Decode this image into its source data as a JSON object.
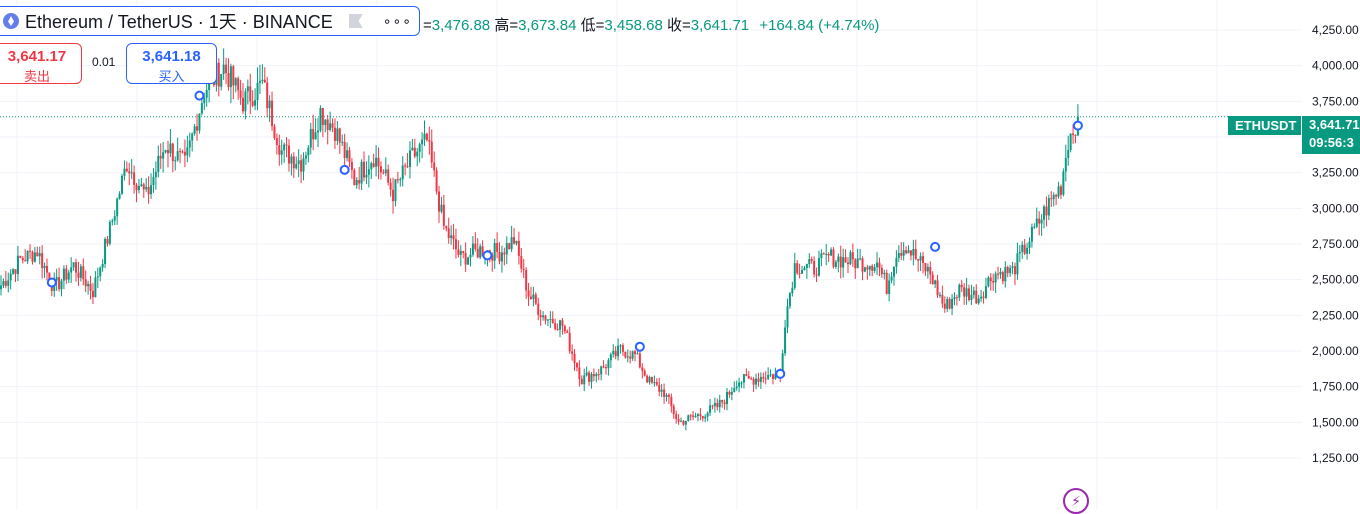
{
  "header": {
    "symbol_title": "Ethereum / TetherUS · 1天 · BINANCE",
    "more_label": "∘∘∘"
  },
  "ohlc": {
    "open_label": "=",
    "open": "3,476.88",
    "high_label": "高=",
    "high": "3,673.84",
    "low_label": "低=",
    "low": "3,458.68",
    "close_label": "收=",
    "close": "3,641.71",
    "change": "+164.84 (+4.74%)"
  },
  "trade": {
    "sell_price": "3,641.17",
    "sell_label": "卖出",
    "spread": "0.01",
    "buy_price": "3,641.18",
    "buy_label": "买入"
  },
  "price_axis": {
    "ticker": "ETHUSDT",
    "last_price": "3,641.71",
    "countdown": "09:56:3"
  },
  "colors": {
    "up": "#089981",
    "down": "#f23645",
    "accent": "#2962ff",
    "grid": "#f0f3fa"
  },
  "icons": {
    "logo": "ethereum-logo-icon",
    "flag": "flag-icon",
    "more": "more-dots-icon",
    "flash": "lightning-icon",
    "event": "event-marker-icon"
  },
  "chart_data": {
    "type": "candlestick",
    "title": "",
    "xlabel": "",
    "ylabel": "",
    "ylim": [
      1200,
      4350
    ],
    "y_ticks": [
      1250,
      1500,
      1750,
      2000,
      2250,
      2500,
      2750,
      3000,
      3250,
      3500,
      3750,
      4000,
      4250
    ],
    "y_tick_labels": [
      "1,250.00",
      "1,500.00",
      "1,750.00",
      "2,000.00",
      "2,250.00",
      "2,500.00",
      "2,750.00",
      "3,000.00",
      "3,250.00",
      "3,500.00",
      "3,750.00",
      "4,000.00",
      "4,250.00"
    ],
    "last_price": 3641.71,
    "grid": true,
    "close_anchors": [
      [
        0,
        2460
      ],
      [
        8,
        2640
      ],
      [
        15,
        2700
      ],
      [
        22,
        2440
      ],
      [
        30,
        2600
      ],
      [
        38,
        2420
      ],
      [
        45,
        2850
      ],
      [
        52,
        3320
      ],
      [
        60,
        3080
      ],
      [
        68,
        3450
      ],
      [
        76,
        3300
      ],
      [
        84,
        3830
      ],
      [
        92,
        3990
      ],
      [
        100,
        3750
      ],
      [
        108,
        3870
      ],
      [
        116,
        3400
      ],
      [
        124,
        3330
      ],
      [
        132,
        3680
      ],
      [
        138,
        3560
      ],
      [
        146,
        3200
      ],
      [
        154,
        3370
      ],
      [
        162,
        3110
      ],
      [
        170,
        3360
      ],
      [
        176,
        3470
      ],
      [
        183,
        2870
      ],
      [
        190,
        2650
      ],
      [
        198,
        2710
      ],
      [
        206,
        2690
      ],
      [
        212,
        2780
      ],
      [
        218,
        2400
      ],
      [
        224,
        2250
      ],
      [
        232,
        2180
      ],
      [
        240,
        1800
      ],
      [
        248,
        1870
      ],
      [
        256,
        2010
      ],
      [
        262,
        1970
      ],
      [
        268,
        1780
      ],
      [
        274,
        1710
      ],
      [
        280,
        1500
      ],
      [
        290,
        1560
      ],
      [
        296,
        1610
      ],
      [
        300,
        1680
      ],
      [
        304,
        1790
      ],
      [
        310,
        1800
      ],
      [
        316,
        1830
      ],
      [
        322,
        1830
      ],
      [
        324,
        2220
      ],
      [
        328,
        2600
      ],
      [
        336,
        2580
      ],
      [
        342,
        2660
      ],
      [
        348,
        2640
      ],
      [
        356,
        2620
      ],
      [
        362,
        2620
      ],
      [
        366,
        2450
      ],
      [
        370,
        2700
      ],
      [
        374,
        2740
      ],
      [
        378,
        2650
      ],
      [
        384,
        2540
      ],
      [
        390,
        2300
      ],
      [
        396,
        2430
      ],
      [
        404,
        2380
      ],
      [
        410,
        2540
      ],
      [
        418,
        2560
      ],
      [
        424,
        2750
      ],
      [
        432,
        3000
      ],
      [
        438,
        3160
      ],
      [
        441,
        3480
      ],
      [
        445,
        3641.71
      ]
    ],
    "events": [
      [
        21,
        2480
      ],
      [
        82,
        3790
      ],
      [
        142,
        3270
      ],
      [
        201,
        2670
      ],
      [
        264,
        2030
      ],
      [
        322,
        1840
      ],
      [
        386,
        2730
      ],
      [
        445,
        3580
      ]
    ]
  }
}
